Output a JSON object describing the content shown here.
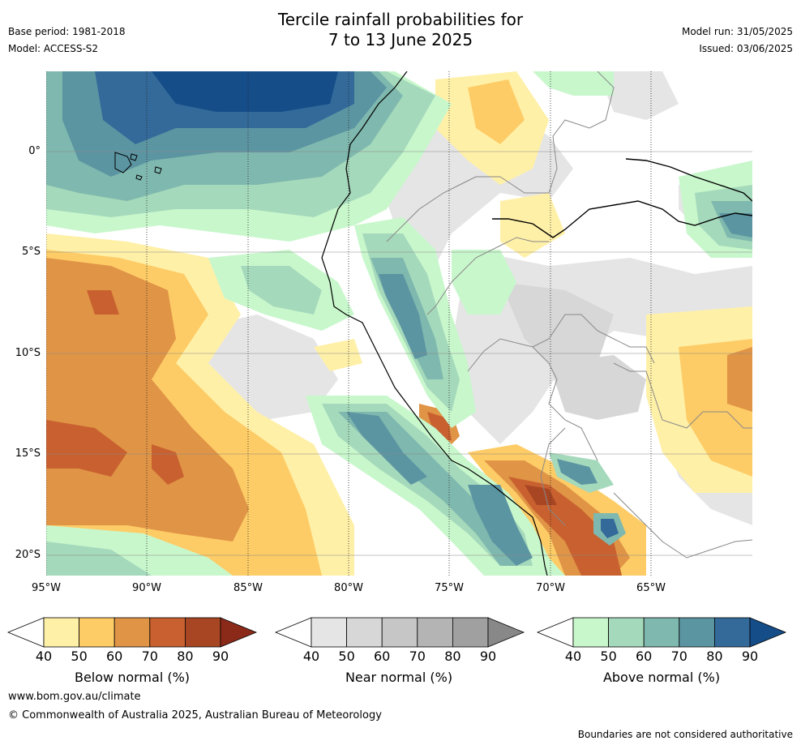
{
  "title": {
    "line1": "Tercile rainfall probabilities for",
    "line2": "7 to 13 June 2025"
  },
  "meta_left": {
    "base_period": "Base period: 1981-2018",
    "model": "Model: ACCESS-S2"
  },
  "meta_right": {
    "model_run": "Model run: 31/05/2025",
    "issued": "Issued: 03/06/2025"
  },
  "map": {
    "lat_labels": [
      "0°",
      "5°S",
      "10°S",
      "15°S",
      "20°S"
    ],
    "lon_labels": [
      "95°W",
      "90°W",
      "85°W",
      "80°W",
      "75°W",
      "70°W",
      "65°W"
    ]
  },
  "colorbars": [
    {
      "label": "Below normal (%)",
      "ticks": [
        "40",
        "50",
        "60",
        "70",
        "80",
        "90"
      ],
      "colors": [
        "#fff0a8",
        "#fecc66",
        "#e09446",
        "#c8612f",
        "#a84624",
        "#8c2a1a"
      ]
    },
    {
      "label": "Near normal (%)",
      "ticks": [
        "40",
        "50",
        "60",
        "70",
        "80",
        "90"
      ],
      "colors": [
        "#e5e5e5",
        "#d7d7d7",
        "#c6c6c6",
        "#b4b4b4",
        "#a0a0a0",
        "#888888"
      ]
    },
    {
      "label": "Above normal (%)",
      "ticks": [
        "40",
        "50",
        "60",
        "70",
        "80",
        "90"
      ],
      "colors": [
        "#c8f7cc",
        "#a5d9bb",
        "#7fb8ae",
        "#5c95a2",
        "#336a9a",
        "#154d88"
      ]
    }
  ],
  "footer": {
    "url": "www.bom.gov.au/climate",
    "copyright": "© Commonwealth of Australia 2025, Australian Bureau of Meteorology",
    "disclaimer": "Boundaries are not considered authoritative"
  }
}
